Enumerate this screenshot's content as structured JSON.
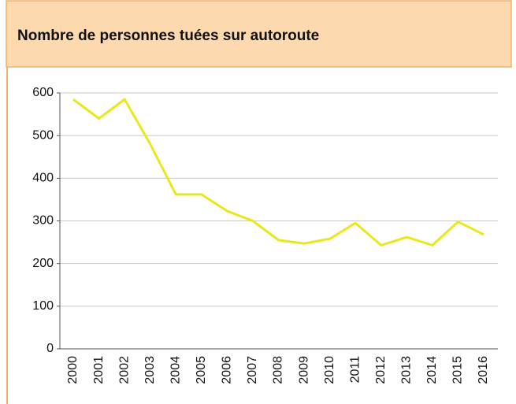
{
  "chart_data": {
    "type": "line",
    "title": "Nombre de personnes tuées sur autoroute",
    "categories": [
      "2000",
      "2001",
      "2002",
      "2003",
      "2004",
      "2005",
      "2006",
      "2007",
      "2008",
      "2009",
      "2010",
      "2011",
      "2012",
      "2013",
      "2014",
      "2015",
      "2016"
    ],
    "values": [
      585,
      540,
      585,
      480,
      362,
      362,
      323,
      300,
      255,
      247,
      258,
      295,
      243,
      262,
      243,
      298,
      268
    ],
    "color": "#e8e81a",
    "ylim": [
      0,
      600
    ],
    "yticks": [
      0,
      100,
      200,
      300,
      400,
      500,
      600
    ],
    "grid": true
  }
}
